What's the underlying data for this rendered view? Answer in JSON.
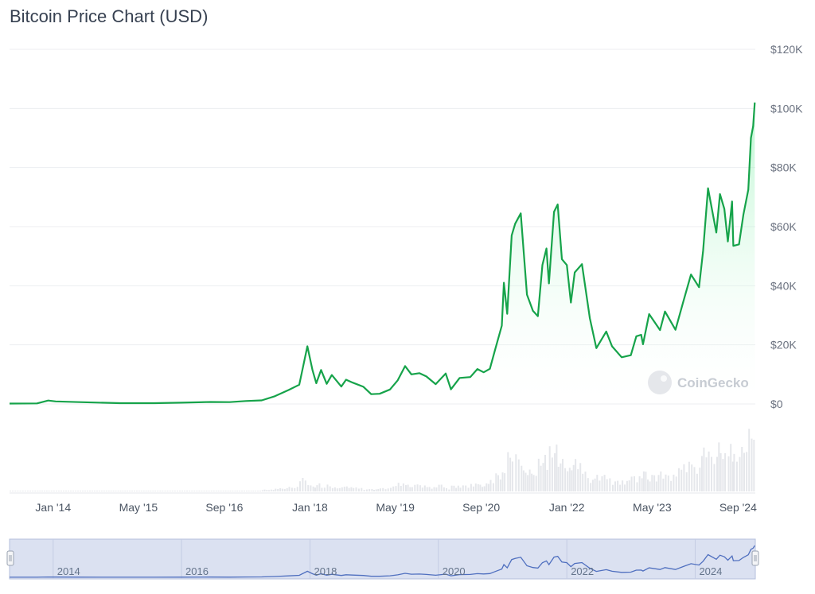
{
  "header": {
    "title": "Bitcoin Price Chart (USD)"
  },
  "watermark": "CoinGecko",
  "colors": {
    "line": "#16a34a",
    "area_top": "#bbf7d0",
    "grid": "#eceef1",
    "navigator_bg": "#dbe1f1",
    "navigator_line": "#4f6fbf",
    "volume": "#e5e7eb"
  },
  "chart_data": {
    "type": "area",
    "title": "Bitcoin Price Chart (USD)",
    "xlabel": "",
    "ylabel": "",
    "xlim": [
      "2013-04-28",
      "2024-12-08"
    ],
    "ylim": [
      0,
      120000
    ],
    "y_ticks": [
      {
        "value": 0,
        "label": "$0"
      },
      {
        "value": 20000,
        "label": "$20K"
      },
      {
        "value": 40000,
        "label": "$40K"
      },
      {
        "value": 60000,
        "label": "$60K"
      },
      {
        "value": 80000,
        "label": "$80K"
      },
      {
        "value": 100000,
        "label": "$100K"
      },
      {
        "value": 120000,
        "label": "$120K"
      }
    ],
    "x_ticks": [
      {
        "date": "2014-01-01",
        "label": "Jan '14"
      },
      {
        "date": "2015-05-01",
        "label": "May '15"
      },
      {
        "date": "2016-09-01",
        "label": "Sep '16"
      },
      {
        "date": "2018-01-01",
        "label": "Jan '18"
      },
      {
        "date": "2019-05-01",
        "label": "May '19"
      },
      {
        "date": "2020-09-01",
        "label": "Sep '20"
      },
      {
        "date": "2022-01-01",
        "label": "Jan '22"
      },
      {
        "date": "2023-05-01",
        "label": "May '23"
      },
      {
        "date": "2024-09-01",
        "label": "Sep '24"
      }
    ],
    "grid": true,
    "series": [
      {
        "x": [
          "2013-04-28",
          "2013-10-01",
          "2013-12-04",
          "2014-01-15",
          "2014-06-01",
          "2015-01-15",
          "2015-08-01",
          "2016-01-01",
          "2016-06-15",
          "2016-10-01",
          "2017-01-01",
          "2017-04-01",
          "2017-06-15",
          "2017-09-01",
          "2017-11-01",
          "2017-12-17",
          "2018-01-15",
          "2018-02-06",
          "2018-03-05",
          "2018-04-06",
          "2018-05-05",
          "2018-06-28",
          "2018-07-25",
          "2018-09-01",
          "2018-11-01",
          "2018-12-15",
          "2019-02-01",
          "2019-04-01",
          "2019-05-15",
          "2019-06-26",
          "2019-08-01",
          "2019-09-15",
          "2019-10-25",
          "2019-12-17",
          "2020-02-12",
          "2020-03-13",
          "2020-05-01",
          "2020-07-01",
          "2020-08-10",
          "2020-09-15",
          "2020-10-20",
          "2020-11-20",
          "2020-12-27",
          "2021-01-08",
          "2021-01-27",
          "2021-02-21",
          "2021-03-13",
          "2021-04-14",
          "2021-05-19",
          "2021-06-22",
          "2021-07-20",
          "2021-08-15",
          "2021-09-07",
          "2021-09-21",
          "2021-10-20",
          "2021-11-10",
          "2021-12-04",
          "2022-01-01",
          "2022-01-24",
          "2022-02-15",
          "2022-03-28",
          "2022-05-12",
          "2022-06-18",
          "2022-08-13",
          "2022-09-15",
          "2022-11-09",
          "2022-12-31",
          "2023-01-31",
          "2023-02-28",
          "2023-03-10",
          "2023-04-14",
          "2023-06-15",
          "2023-07-13",
          "2023-09-11",
          "2023-10-25",
          "2023-12-08",
          "2024-01-23",
          "2024-02-15",
          "2024-03-14",
          "2024-04-30",
          "2024-05-21",
          "2024-06-15",
          "2024-07-05",
          "2024-07-29",
          "2024-08-05",
          "2024-09-06",
          "2024-10-01",
          "2024-10-29",
          "2024-11-13",
          "2024-11-26",
          "2024-12-05"
        ],
        "y": [
          135,
          180,
          1150,
          850,
          620,
          260,
          280,
          430,
          680,
          610,
          990,
          1200,
          2600,
          4700,
          6500,
          19500,
          11500,
          7000,
          11500,
          6800,
          9800,
          5900,
          8200,
          7200,
          5800,
          3300,
          3450,
          4900,
          8000,
          12800,
          10000,
          10400,
          9300,
          6700,
          10300,
          4950,
          8800,
          9100,
          11800,
          10700,
          11900,
          18600,
          26500,
          41000,
          30500,
          57000,
          61000,
          64500,
          37000,
          31500,
          29700,
          47000,
          52600,
          40800,
          65000,
          67500,
          49000,
          47000,
          34300,
          44500,
          47300,
          29000,
          18900,
          24500,
          19500,
          15800,
          16500,
          22900,
          23400,
          20200,
          30400,
          25000,
          31300,
          25100,
          34500,
          43800,
          39500,
          51800,
          73000,
          58000,
          71000,
          66000,
          55000,
          68500,
          53500,
          54000,
          64000,
          72500,
          90000,
          94000,
          102000
        ]
      }
    ]
  },
  "navigator": {
    "x_ticks": [
      {
        "date": "2014-01-01",
        "label": "2014"
      },
      {
        "date": "2016-01-01",
        "label": "2016"
      },
      {
        "date": "2018-01-01",
        "label": "2018"
      },
      {
        "date": "2020-01-01",
        "label": "2020"
      },
      {
        "date": "2022-01-01",
        "label": "2022"
      },
      {
        "date": "2024-01-01",
        "label": "2024"
      }
    ]
  }
}
